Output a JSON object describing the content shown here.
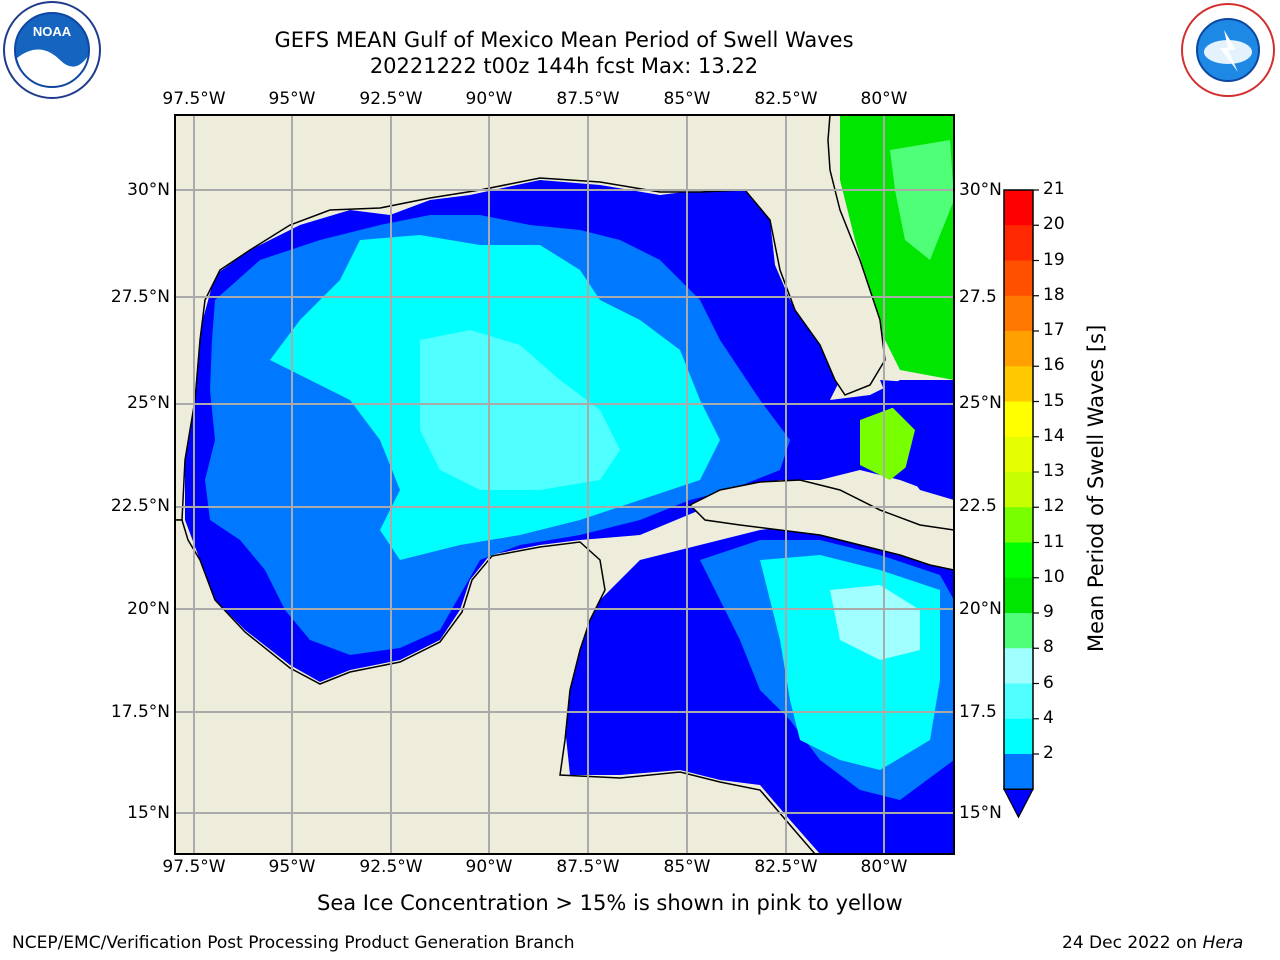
{
  "title_line1": "GEFS MEAN Gulf of Mexico Mean Period of Swell Waves",
  "title_line2": "20221222 t00z 144h fcst   Max: 13.22",
  "logos": {
    "left": "NOAA",
    "right": "National Weather Service"
  },
  "lon_labels": [
    "97.5°W",
    "95°W",
    "92.5°W",
    "90°W",
    "87.5°W",
    "85°W",
    "82.5°W",
    "80°W"
  ],
  "lat_labels_left": [
    "30°N",
    "27.5°N",
    "25°N",
    "22.5°N",
    "20°N",
    "17.5°N",
    "15°N"
  ],
  "lat_labels_right": [
    "30°N",
    "27.5",
    "25°N",
    "22.5",
    "20°N",
    "17.5",
    "15°N"
  ],
  "colorbar": {
    "title": "Mean Period of Swell Waves [s]",
    "ticks": [
      "21",
      "20",
      "19",
      "18",
      "17",
      "16",
      "15",
      "14",
      "13",
      "12",
      "11",
      "10",
      "9",
      "8",
      "6",
      "4",
      "2"
    ],
    "colors": [
      "#ff0000",
      "#ff2800",
      "#ff5000",
      "#ff7800",
      "#ffa000",
      "#ffc800",
      "#ffff00",
      "#e6ff00",
      "#c8ff00",
      "#78ff00",
      "#00ff00",
      "#00e600",
      "#50ff78",
      "#a0ffff",
      "#50ffff",
      "#00ffff",
      "#0078ff"
    ],
    "extend_color": "#0000ff"
  },
  "caption": "Sea Ice Concentration > 15% is shown in pink to yellow",
  "footer_left": "NCEP/EMC/Verification Post Processing Product Generation Branch",
  "footer_right_date": "24 Dec 2022 on",
  "footer_right_host": "Hera",
  "colors": {
    "land": "#eeeddc",
    "deep_blue": "#0000ff",
    "mid_blue": "#0078ff",
    "cyan": "#00ffff",
    "light_cyan": "#50ffff",
    "green": "#00e600"
  }
}
